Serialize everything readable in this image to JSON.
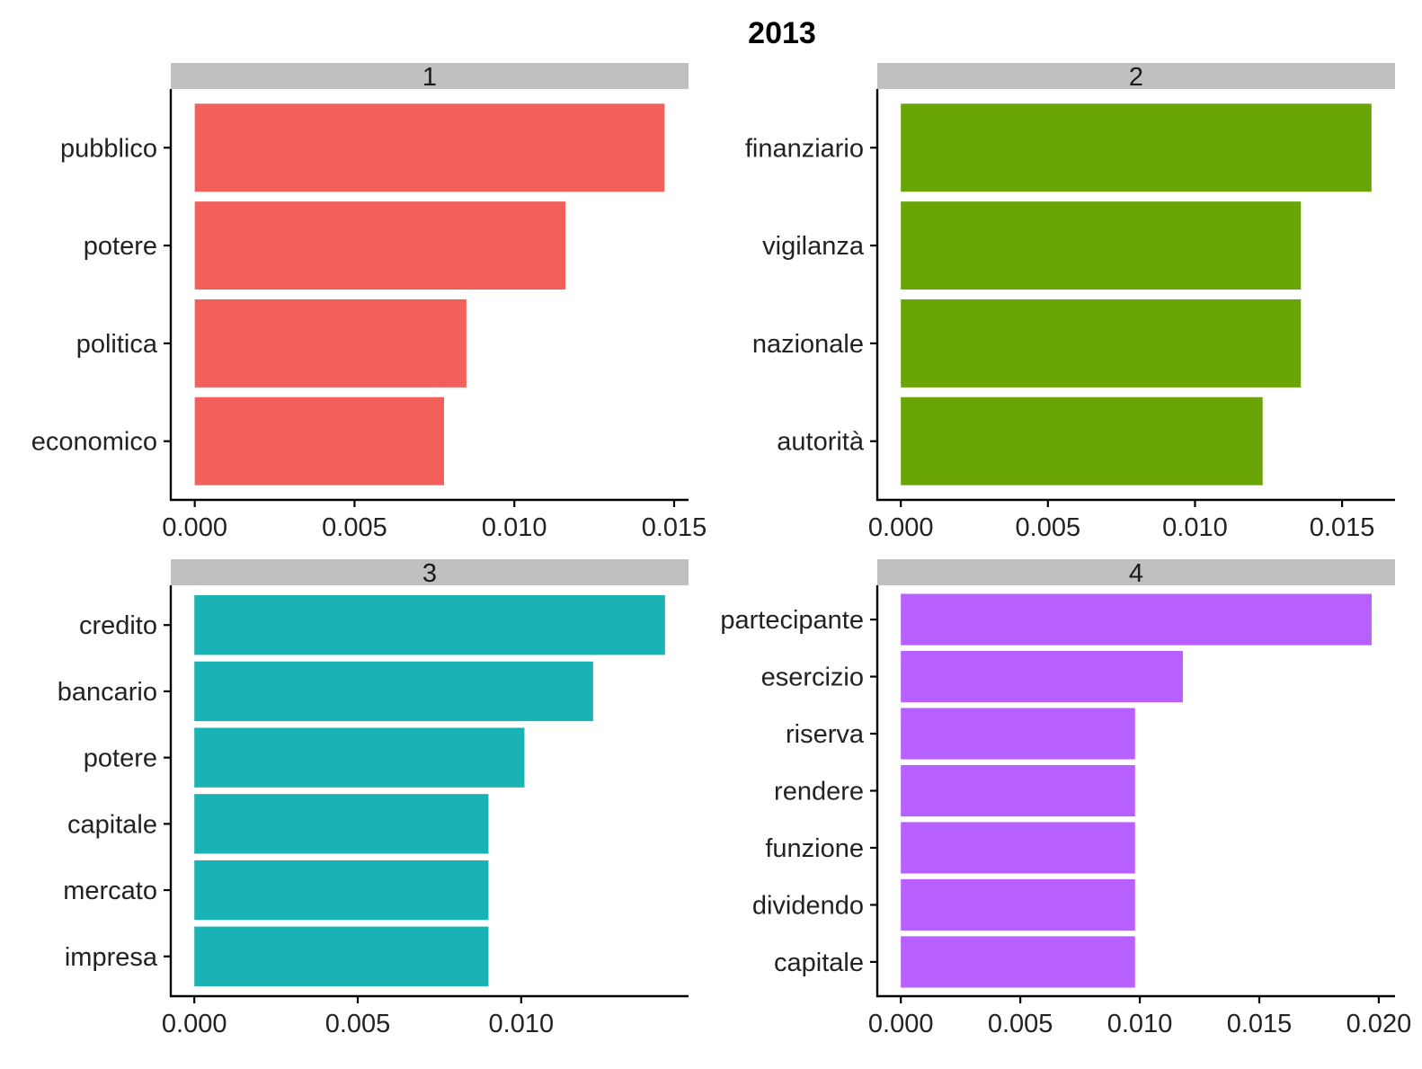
{
  "chart_data": {
    "type": "bar",
    "orientation": "horizontal",
    "title": "2013",
    "xlabel": "",
    "ylabel": "",
    "grid": false,
    "legend": "none",
    "panels": [
      {
        "label": "1",
        "color": "#F35F5B",
        "categories": [
          "pubblico",
          "potere",
          "politica",
          "economico"
        ],
        "values": [
          0.0147,
          0.0116,
          0.0085,
          0.0078
        ],
        "xlim": [
          -0.00075,
          0.01545
        ],
        "ticks": [
          "0.000",
          "0.005",
          "0.010",
          "0.015"
        ]
      },
      {
        "label": "2",
        "color": "#6AA507",
        "categories": [
          "finanziario",
          "vigilanza",
          "nazionale",
          "autorità"
        ],
        "values": [
          0.016,
          0.0136,
          0.0136,
          0.0123
        ],
        "xlim": [
          -0.0008,
          0.0168
        ],
        "ticks": [
          "0.000",
          "0.005",
          "0.010",
          "0.015"
        ]
      },
      {
        "label": "3",
        "color": "#19B2B5",
        "categories": [
          "credito",
          "bancario",
          "potere",
          "capitale",
          "mercato",
          "impresa"
        ],
        "values": [
          0.0144,
          0.0122,
          0.0101,
          0.009,
          0.009,
          0.009
        ],
        "xlim": [
          -0.00072,
          0.01512
        ],
        "ticks": [
          "0.000",
          "0.005",
          "0.010"
        ]
      },
      {
        "label": "4",
        "color": "#B85FFF",
        "categories": [
          "partecipante",
          "esercizio",
          "riserva",
          "rendere",
          "funzione",
          "dividendo",
          "capitale"
        ],
        "values": [
          0.0197,
          0.0118,
          0.0098,
          0.0098,
          0.0098,
          0.0098,
          0.0098
        ],
        "xlim": [
          -0.000985,
          0.02068
        ],
        "ticks": [
          "0.000",
          "0.005",
          "0.010",
          "0.015",
          "0.020"
        ]
      }
    ]
  }
}
